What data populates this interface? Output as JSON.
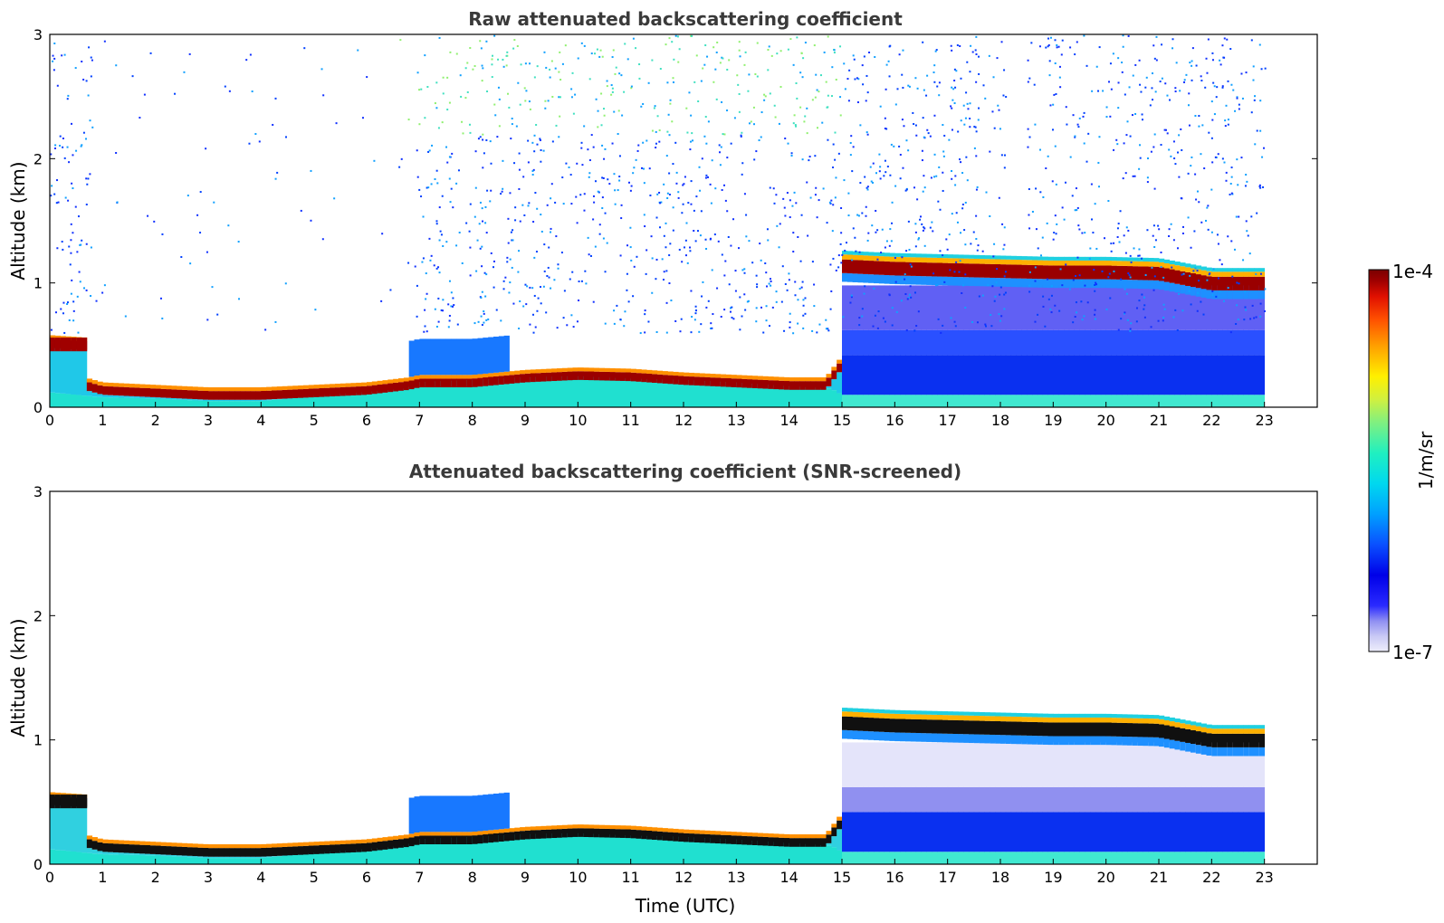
{
  "chart_data": [
    {
      "type": "heatmap",
      "title": "Raw attenuated backscattering coefficient",
      "xlabel": "",
      "ylabel": "Altitude (km)",
      "xlim": [
        0,
        24
      ],
      "ylim": [
        0,
        3
      ],
      "x_ticks": [
        "0",
        "1",
        "2",
        "3",
        "4",
        "5",
        "6",
        "7",
        "8",
        "9",
        "10",
        "11",
        "12",
        "13",
        "14",
        "15",
        "16",
        "17",
        "18",
        "19",
        "20",
        "21",
        "22",
        "23"
      ],
      "y_ticks": [
        "0",
        "1",
        "2",
        "3"
      ],
      "data_end_time": 23,
      "features": {
        "surface_layer_top_km": [
          [
            0,
            0.12
          ],
          [
            1,
            0.08
          ],
          [
            2,
            0.07
          ],
          [
            3,
            0.05
          ],
          [
            4,
            0.05
          ],
          [
            5,
            0.09
          ],
          [
            6,
            0.12
          ],
          [
            6.8,
            0.15
          ],
          [
            7,
            0.2
          ],
          [
            8,
            0.22
          ],
          [
            9,
            0.24
          ],
          [
            10,
            0.25
          ],
          [
            11,
            0.23
          ],
          [
            12,
            0.22
          ],
          [
            13,
            0.2
          ],
          [
            14,
            0.17
          ],
          [
            14.8,
            0.15
          ],
          [
            15,
            0.1
          ],
          [
            16,
            0.08
          ],
          [
            17,
            0.06
          ],
          [
            18,
            0.06
          ],
          [
            19,
            0.05
          ],
          [
            20,
            0.05
          ],
          [
            21,
            0.05
          ],
          [
            22,
            0.05
          ],
          [
            23,
            0.05
          ]
        ],
        "low_layer_km": [
          [
            0,
            0.52
          ],
          [
            0.7,
            0.5
          ],
          [
            0.75,
            0.17
          ],
          [
            1,
            0.14
          ],
          [
            2,
            0.12
          ],
          [
            3,
            0.1
          ],
          [
            4,
            0.1
          ],
          [
            5,
            0.12
          ],
          [
            6,
            0.14
          ],
          [
            6.8,
            0.18
          ],
          [
            7,
            0.2
          ],
          [
            8,
            0.2
          ],
          [
            9,
            0.24
          ],
          [
            10,
            0.26
          ],
          [
            11,
            0.25
          ],
          [
            12,
            0.22
          ],
          [
            13,
            0.2
          ],
          [
            14,
            0.18
          ],
          [
            14.7,
            0.18
          ],
          [
            15,
            0.35
          ]
        ],
        "cloud_layer_km": [
          [
            15.0,
            1.14
          ],
          [
            16,
            1.12
          ],
          [
            17,
            1.11
          ],
          [
            18,
            1.1
          ],
          [
            19,
            1.09
          ],
          [
            20,
            1.09
          ],
          [
            21,
            1.08
          ],
          [
            22,
            1.0
          ],
          [
            23,
            1.0
          ]
        ],
        "upper_layer_km": [
          [
            7,
            0.45
          ],
          [
            8,
            0.5
          ],
          [
            8.5,
            0.35
          ],
          [
            9,
            0.3
          ],
          [
            15.1,
            0.42
          ],
          [
            15.5,
            0.35
          ]
        ]
      }
    },
    {
      "type": "heatmap",
      "title": "Attenuated backscattering coefficient (SNR-screened)",
      "xlabel": "Time (UTC)",
      "ylabel": "Altitude (km)",
      "xlim": [
        0,
        24
      ],
      "ylim": [
        0,
        3
      ],
      "x_ticks": [
        "0",
        "1",
        "2",
        "3",
        "4",
        "5",
        "6",
        "7",
        "8",
        "9",
        "10",
        "11",
        "12",
        "13",
        "14",
        "15",
        "16",
        "17",
        "18",
        "19",
        "20",
        "21",
        "22",
        "23"
      ],
      "y_ticks": [
        "0",
        "1",
        "2",
        "3"
      ],
      "data_end_time": 23
    }
  ],
  "colorbar": {
    "label": "1/m/sr",
    "max_label": "1e-4",
    "min_label": "1e-7",
    "colormap": [
      "#eeeefb",
      "#c9c9f5",
      "#8f8ff2",
      "#2a2aff",
      "#0000e8",
      "#0a50ff",
      "#00a0ff",
      "#00d8ef",
      "#20f0c0",
      "#80f080",
      "#d0f040",
      "#fff000",
      "#ffa000",
      "#ff5000",
      "#e01000",
      "#a00000",
      "#7a0000"
    ]
  }
}
